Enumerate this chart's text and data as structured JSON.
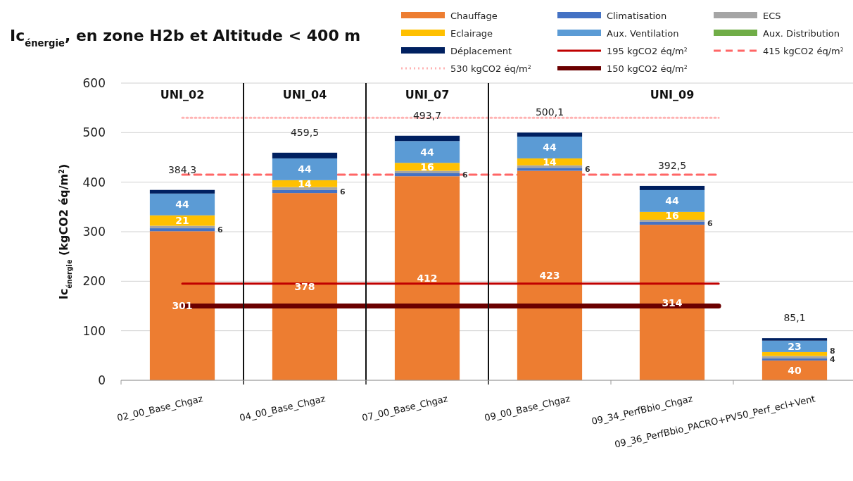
{
  "chart_data": {
    "type": "bar",
    "stacked": true,
    "title": "Ic$_{énergie}$, en zone H2b et Altitude < 400 m",
    "ylabel": "Ic$_{énergie}$ (kgCO2 éq/m$^{2}$)",
    "categories": [
      "02_00_Base_Chgaz",
      "04_00_Base_Chgaz",
      "07_00_Base_Chgaz",
      "09_00_Base_Chgaz",
      "09_34_PerfBbio_Chgaz",
      "09_36_PerfBbio_PACRO+PV50_Perf_ecl+Vent"
    ],
    "series": [
      {
        "name": "Chauffage",
        "color": "#ed7d31",
        "values": [
          301,
          378,
          412,
          423,
          314,
          40
        ],
        "value_labels": [
          "301",
          "378",
          "412",
          "423",
          "314",
          "40"
        ]
      },
      {
        "name": "Climatisation",
        "color": "#4472c4",
        "values": [
          6,
          6,
          6,
          6,
          6,
          4
        ],
        "value_labels": [
          "6",
          "6",
          "6",
          "6",
          "6",
          "4"
        ]
      },
      {
        "name": "ECS",
        "color": "#a5a5a5",
        "values": [
          5,
          6,
          5,
          5,
          4,
          5
        ],
        "value_labels": [
          null,
          null,
          null,
          null,
          null,
          null
        ]
      },
      {
        "name": "Eclairage",
        "color": "#ffc000",
        "values": [
          21,
          14,
          16,
          14,
          16,
          8
        ],
        "value_labels": [
          "21",
          "14",
          "16",
          "14",
          "16",
          "8"
        ]
      },
      {
        "name": "Aux. Ventilation",
        "color": "#5b9bd5",
        "values": [
          44,
          44,
          44,
          44,
          44,
          23
        ],
        "value_labels": [
          "44",
          "44",
          "44",
          "44",
          "44",
          "23"
        ]
      },
      {
        "name": "Aux. Distribution",
        "color": "#70ad47",
        "values": [
          0,
          0,
          0,
          0,
          0,
          0
        ],
        "value_labels": [
          null,
          null,
          null,
          null,
          null,
          null
        ]
      },
      {
        "name": "Déplacement",
        "color": "#002060",
        "values": [
          7.3,
          11.5,
          10.7,
          8.1,
          8.5,
          5.1
        ],
        "value_labels": [
          null,
          null,
          null,
          null,
          null,
          null
        ]
      }
    ],
    "totals": [
      "384,3",
      "459,5",
      "493,7",
      "500,1",
      "392,5",
      "85,1"
    ],
    "ref_lines": [
      {
        "axis": "y",
        "value": 195,
        "label": "195 kgCO2 éq/m$^{2}$",
        "color": "#c00000",
        "line_style": "solid"
      },
      {
        "axis": "y",
        "value": 415,
        "label": "415 kgCO2 éq/m$^{2}$",
        "color": "#ff6666",
        "line_style": "dashed"
      },
      {
        "axis": "y",
        "value": 530,
        "label": "530 kgCO2 éq/m$^{2}$",
        "color": "#ffb3b3",
        "line_style": "dotted"
      },
      {
        "axis": "y",
        "value": 150,
        "label": "150 kgCO2 éq/m$^{2}$",
        "color": "#6b0000",
        "line_style": "solid"
      }
    ],
    "annotations": [
      "UNI_02",
      "UNI_04",
      "UNI_07",
      "UNI_09"
    ],
    "ylim": [
      0,
      600
    ],
    "yticks": [
      0,
      100,
      200,
      300,
      400,
      500,
      600
    ],
    "grid": "y",
    "legend": "top right"
  }
}
